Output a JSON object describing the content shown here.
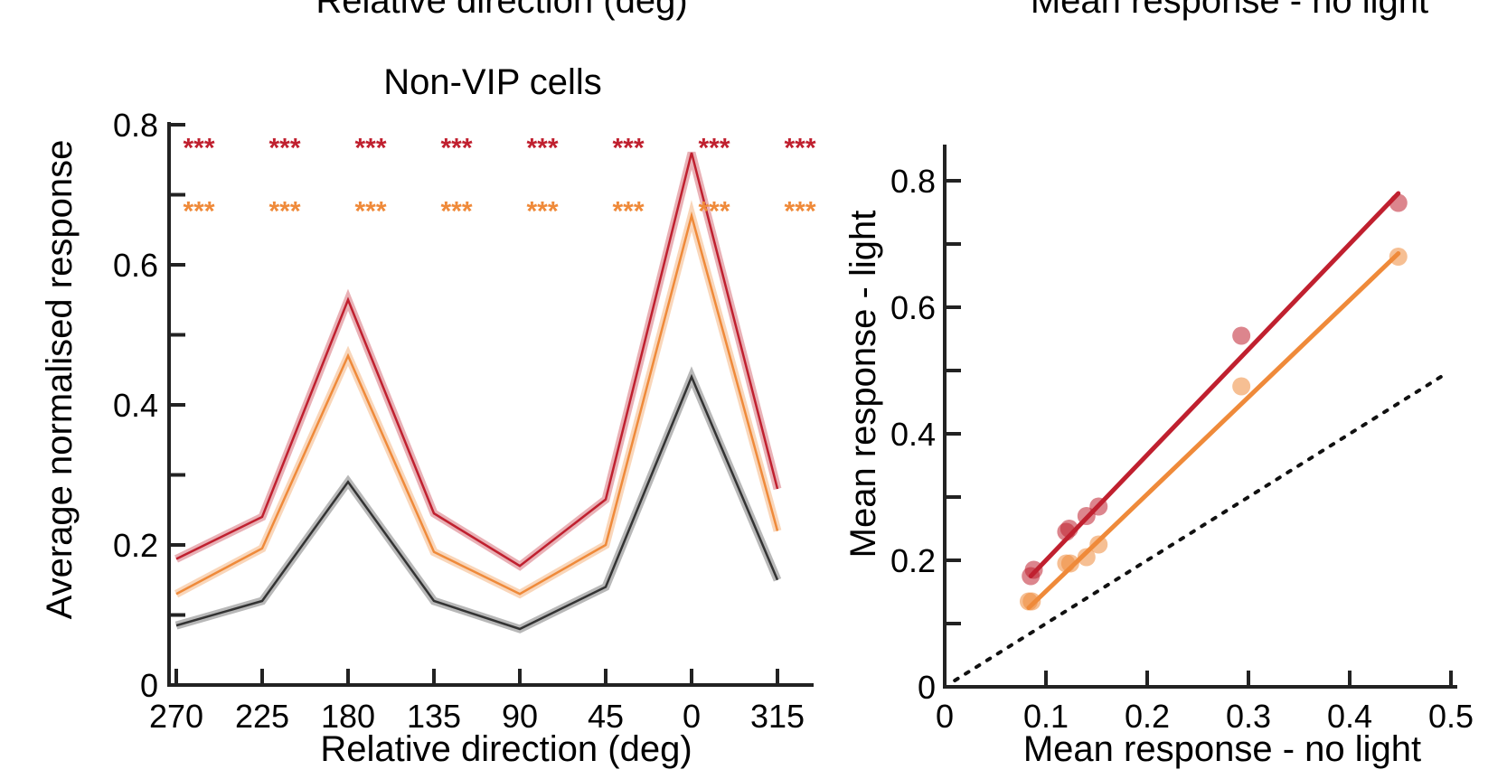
{
  "top_clipped_labels": {
    "left": "Relative direction (deg)",
    "right": "Mean response - no light"
  },
  "chart_data": [
    {
      "type": "line",
      "title": "Non-VIP cells",
      "xlabel": "Relative direction (deg)",
      "ylabel": "Average normalised response",
      "categories": [
        "270",
        "225",
        "180",
        "135",
        "90",
        "45",
        "0",
        "315"
      ],
      "ylim": [
        0,
        0.8
      ],
      "yticks": [
        "0",
        "0.2",
        "0.4",
        "0.6",
        "0.8"
      ],
      "series": [
        {
          "name": "dark-red",
          "color": "#c0202f",
          "values": [
            0.18,
            0.24,
            0.55,
            0.245,
            0.17,
            0.265,
            0.76,
            0.28
          ]
        },
        {
          "name": "orange",
          "color": "#ef8a3a",
          "values": [
            0.13,
            0.195,
            0.47,
            0.19,
            0.13,
            0.2,
            0.67,
            0.22
          ]
        },
        {
          "name": "black",
          "color": "#333333",
          "values": [
            0.085,
            0.12,
            0.29,
            0.12,
            0.08,
            0.14,
            0.44,
            0.15
          ]
        }
      ],
      "significance": [
        {
          "label": "***",
          "color": "#c0202f",
          "y": 0.78
        },
        {
          "label": "***",
          "color": "#ef8a3a",
          "y": 0.69
        }
      ]
    },
    {
      "type": "scatter",
      "xlabel": "Mean response - no light",
      "ylabel": "Mean response - light",
      "xlim": [
        0,
        0.5
      ],
      "ylim": [
        0,
        0.85
      ],
      "xticks": [
        "0",
        "0.1",
        "0.2",
        "0.3",
        "0.4",
        "0.5"
      ],
      "yticks": [
        "0",
        "0.2",
        "0.4",
        "0.6",
        "0.8"
      ],
      "series": [
        {
          "name": "dark-red",
          "color": "#c0202f",
          "x": [
            0.085,
            0.088,
            0.12,
            0.123,
            0.14,
            0.152,
            0.293,
            0.448
          ],
          "y": [
            0.175,
            0.185,
            0.245,
            0.25,
            0.27,
            0.285,
            0.555,
            0.765
          ],
          "fit": {
            "x0": 0.085,
            "y0": 0.175,
            "x1": 0.448,
            "y1": 0.78
          }
        },
        {
          "name": "orange",
          "color": "#ef8a3a",
          "x": [
            0.083,
            0.086,
            0.12,
            0.124,
            0.14,
            0.152,
            0.293,
            0.448
          ],
          "y": [
            0.135,
            0.135,
            0.195,
            0.195,
            0.205,
            0.225,
            0.475,
            0.68
          ],
          "fit": {
            "x0": 0.083,
            "y0": 0.125,
            "x1": 0.448,
            "y1": 0.685
          }
        }
      ],
      "identity_line": {
        "x0": 0.01,
        "y0": 0.01,
        "x1": 0.49,
        "y1": 0.49
      }
    }
  ]
}
